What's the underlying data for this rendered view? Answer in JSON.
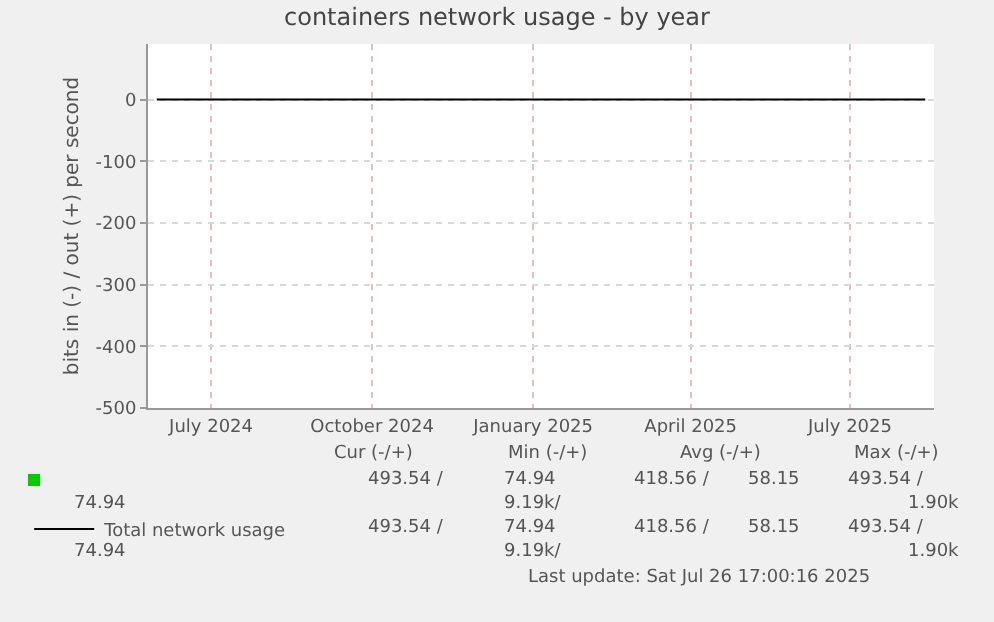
{
  "chart_data": {
    "type": "line",
    "title": "containers network usage - by year",
    "ylabel": "bits in (-) / out (+) per second",
    "x": [
      "2024-05-31",
      "2025-08-13"
    ],
    "series": [
      {
        "color": "#00cc00",
        "values": [
          null,
          null
        ]
      },
      {
        "name": "Total network usage",
        "color": "#000000",
        "values": [
          0,
          0
        ]
      }
    ],
    "xlim": [
      "2024-05-26",
      "2025-08-18"
    ],
    "xticks": [
      {
        "value": "2024-07-01",
        "label": "July 2024"
      },
      {
        "value": "2024-10-01",
        "label": "October 2024"
      },
      {
        "value": "2025-01-01",
        "label": "January 2025"
      },
      {
        "value": "2025-04-01",
        "label": "April 2025"
      },
      {
        "value": "2025-07-01",
        "label": "July 2025"
      }
    ],
    "ylim": [
      -500,
      90
    ],
    "yticks": [
      -500,
      -400,
      -300,
      -200,
      -100,
      0
    ],
    "grid": true,
    "legend": "bottom left",
    "marker": "none",
    "line_style": "solid",
    "annotations": [
      "Cur (-/+)",
      "Min (-/+)",
      "Avg (-/+)",
      "Max (-/+)",
      "493.54 /",
      "74.94",
      "418.56 /",
      "58.15",
      "493.54 /",
      "74.94",
      "9.19k/",
      "1.90k",
      "493.54 /",
      "74.94",
      "418.56 /",
      "58.15",
      "493.54 /",
      "74.94",
      "9.19k/",
      "1.90k",
      "Last update: Sat Jul 26 17:00:16 2025"
    ]
  }
}
